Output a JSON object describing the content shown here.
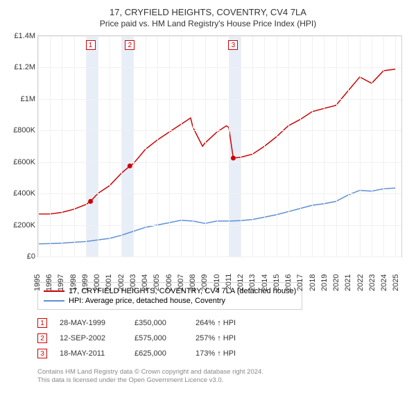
{
  "title": "17, CRYFIELD HEIGHTS, COVENTRY, CV4 7LA",
  "subtitle": "Price paid vs. HM Land Registry's House Price Index (HPI)",
  "chart": {
    "type": "line",
    "background_color": "#ffffff",
    "grid_color": "#f0f0f0",
    "border_color": "#d0d0d0",
    "x_years": [
      1995,
      1996,
      1997,
      1998,
      1999,
      2000,
      2001,
      2002,
      2003,
      2004,
      2005,
      2006,
      2007,
      2008,
      2009,
      2010,
      2011,
      2012,
      2013,
      2014,
      2015,
      2016,
      2017,
      2018,
      2019,
      2020,
      2021,
      2022,
      2023,
      2024,
      2025
    ],
    "xlim": [
      1995,
      2025.5
    ],
    "ylim": [
      0,
      1400000
    ],
    "ytick_step": 200000,
    "ytick_labels": [
      "£0",
      "£200K",
      "£400K",
      "£600K",
      "£800K",
      "£1M",
      "£1.2M",
      "£1.4M"
    ],
    "label_fontsize": 11,
    "series": [
      {
        "name": "17, CRYFIELD HEIGHTS, COVENTRY, CV4 7LA (detached house)",
        "color": "#cc0000",
        "line_width": 1.5,
        "points": [
          [
            1995,
            270000
          ],
          [
            1996,
            270000
          ],
          [
            1997,
            280000
          ],
          [
            1998,
            300000
          ],
          [
            1999,
            330000
          ],
          [
            1999.4,
            350000
          ],
          [
            2000,
            400000
          ],
          [
            2001,
            450000
          ],
          [
            2002,
            530000
          ],
          [
            2002.7,
            575000
          ],
          [
            2003,
            590000
          ],
          [
            2004,
            680000
          ],
          [
            2005,
            740000
          ],
          [
            2006,
            790000
          ],
          [
            2007,
            840000
          ],
          [
            2007.8,
            880000
          ],
          [
            2008,
            820000
          ],
          [
            2008.8,
            700000
          ],
          [
            2009,
            720000
          ],
          [
            2010,
            790000
          ],
          [
            2010.8,
            830000
          ],
          [
            2011,
            820000
          ],
          [
            2011.38,
            625000
          ],
          [
            2012,
            630000
          ],
          [
            2013,
            650000
          ],
          [
            2014,
            700000
          ],
          [
            2015,
            760000
          ],
          [
            2016,
            830000
          ],
          [
            2017,
            870000
          ],
          [
            2018,
            920000
          ],
          [
            2019,
            940000
          ],
          [
            2020,
            960000
          ],
          [
            2021,
            1050000
          ],
          [
            2022,
            1140000
          ],
          [
            2023,
            1100000
          ],
          [
            2024,
            1180000
          ],
          [
            2025,
            1190000
          ]
        ]
      },
      {
        "name": "HPI: Average price, detached house, Coventry",
        "color": "#5b8fd6",
        "line_width": 1.5,
        "points": [
          [
            1995,
            80000
          ],
          [
            1996,
            82000
          ],
          [
            1997,
            85000
          ],
          [
            1998,
            90000
          ],
          [
            1999,
            95000
          ],
          [
            2000,
            105000
          ],
          [
            2001,
            115000
          ],
          [
            2002,
            135000
          ],
          [
            2003,
            160000
          ],
          [
            2004,
            185000
          ],
          [
            2005,
            200000
          ],
          [
            2006,
            215000
          ],
          [
            2007,
            230000
          ],
          [
            2008,
            225000
          ],
          [
            2009,
            210000
          ],
          [
            2010,
            225000
          ],
          [
            2011,
            225000
          ],
          [
            2012,
            228000
          ],
          [
            2013,
            235000
          ],
          [
            2014,
            250000
          ],
          [
            2015,
            265000
          ],
          [
            2016,
            285000
          ],
          [
            2017,
            305000
          ],
          [
            2018,
            325000
          ],
          [
            2019,
            335000
          ],
          [
            2020,
            350000
          ],
          [
            2021,
            390000
          ],
          [
            2022,
            420000
          ],
          [
            2023,
            415000
          ],
          [
            2024,
            430000
          ],
          [
            2025,
            435000
          ]
        ]
      }
    ],
    "sale_markers": [
      {
        "n": 1,
        "x": 1999.4,
        "y": 350000
      },
      {
        "n": 2,
        "x": 2002.7,
        "y": 575000
      },
      {
        "n": 3,
        "x": 2011.38,
        "y": 625000
      }
    ],
    "marker_box_color": "#cc0000",
    "shaded_years": [
      1999,
      2002,
      2011
    ],
    "shade_color": "#e8eef7"
  },
  "legend": {
    "items": [
      {
        "label": "17, CRYFIELD HEIGHTS, COVENTRY, CV4 7LA (detached house)",
        "color": "#cc0000"
      },
      {
        "label": "HPI: Average price, detached house, Coventry",
        "color": "#5b8fd6"
      }
    ]
  },
  "sales": [
    {
      "n": 1,
      "date": "28-MAY-1999",
      "price": "£350,000",
      "pct": "264% ↑ HPI"
    },
    {
      "n": 2,
      "date": "12-SEP-2002",
      "price": "£575,000",
      "pct": "257% ↑ HPI"
    },
    {
      "n": 3,
      "date": "18-MAY-2011",
      "price": "£625,000",
      "pct": "173% ↑ HPI"
    }
  ],
  "footer_line1": "Contains HM Land Registry data © Crown copyright and database right 2024.",
  "footer_line2": "This data is licensed under the Open Government Licence v3.0."
}
